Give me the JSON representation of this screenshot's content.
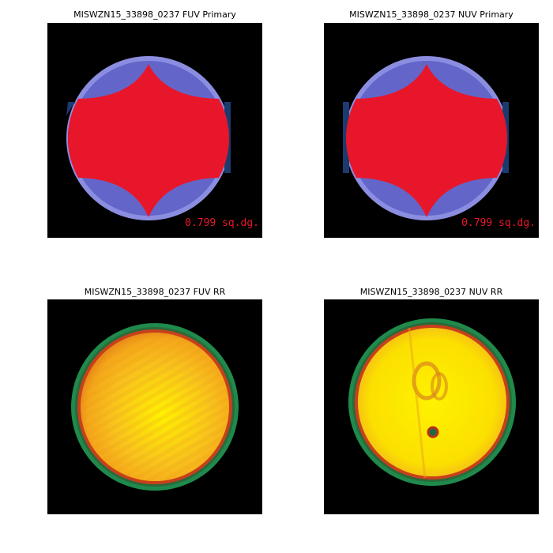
{
  "panels": [
    {
      "title": "MISWZN15_33898_0237 FUV Primary",
      "band": "FUV",
      "kind": "primary",
      "area_label": "0.799 sq.dg."
    },
    {
      "title": "MISWZN15_33898_0237 NUV Primary",
      "band": "NUV",
      "kind": "primary",
      "area_label": "0.799 sq.dg."
    },
    {
      "title": "MISWZN15_33898_0237 FUV RR",
      "band": "FUV",
      "kind": "relative-response"
    },
    {
      "title": "MISWZN15_33898_0237 NUV RR",
      "band": "NUV",
      "kind": "relative-response"
    }
  ],
  "colors": {
    "background": "#000000",
    "primary_region": "#e8162a",
    "overlap_region": "#6366c8",
    "outer_edge": "#8b8ee0",
    "dark_edge": "#1b3a6e",
    "rr_core": "#fff200",
    "rr_mid": "#f4a61a",
    "rr_edge_red": "#c8401a",
    "rr_ring_green": "#1f8a4c"
  }
}
